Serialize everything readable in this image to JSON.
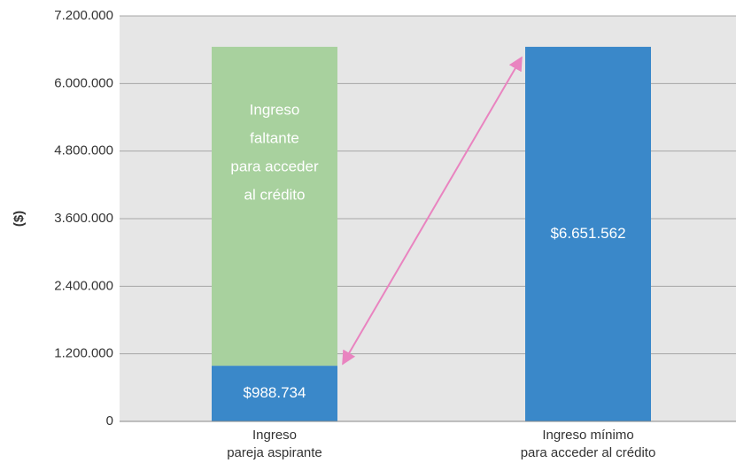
{
  "chart_data": {
    "type": "bar",
    "stacked": true,
    "y_label": "($)",
    "categories": [
      [
        "Ingreso",
        "pareja aspirante"
      ],
      [
        "Ingreso mínimo",
        "para acceder al crédito"
      ]
    ],
    "series": [
      {
        "color": "#3a88c9",
        "values": [
          988734,
          6651562
        ],
        "value_labels": [
          "$988.734",
          "$6.651.562"
        ]
      },
      {
        "color": "#a8d19e",
        "values": [
          5662828,
          null
        ],
        "label_lines": [
          "Ingreso",
          "faltante",
          "para acceder",
          "al crédito"
        ]
      }
    ],
    "ylim": [
      0,
      7200000
    ],
    "yticks": [
      0,
      {
        "value": 1200000,
        "label": "1.200.000"
      },
      {
        "value": 2400000,
        "label": "2.400.000"
      },
      {
        "value": 3600000,
        "label": "3.600.000"
      },
      {
        "value": 4800000,
        "label": "4.800.000"
      },
      {
        "value": 6000000,
        "label": "6.000.000"
      },
      {
        "value": 7200000,
        "label": "7.200.000"
      }
    ],
    "grid": true,
    "arrow_color": "#e984c0"
  }
}
